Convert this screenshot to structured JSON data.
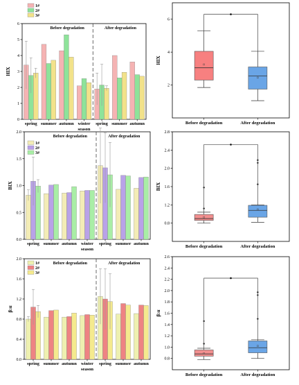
{
  "colors": {
    "s1_top": "#f5b3b3",
    "s2_top": "#8ee39a",
    "s3_top": "#f2e28a",
    "s1_mid": "#f3ecb6",
    "s2_mid": "#b9a2e8",
    "s3_mid": "#a9eea6",
    "s1_bot": "#eef0b0",
    "s2_bot": "#ee8383",
    "s3_bot": "#f5ea8e",
    "box_top_a": "#f78080",
    "box_top_b": "#6aa5e6",
    "box_mid_a": "#f28f8f",
    "box_mid_b": "#6aa5e6",
    "box_bot_a": "#f28f8f",
    "box_bot_b": "#6aa5e6"
  },
  "chart_data": [
    {
      "type": "bar",
      "ylabel": "HIX",
      "xlabel": "season",
      "ylim": [
        0,
        6
      ],
      "yticks": [
        0,
        1,
        2,
        3,
        4,
        5,
        6
      ],
      "categories": [
        "spring",
        "summer",
        "autumn",
        "winter",
        "spring",
        "summer",
        "autumn"
      ],
      "annotations": [
        "Before degradation",
        "After degradation"
      ],
      "series": [
        {
          "name": "1#",
          "values": [
            3.4,
            4.7,
            4.3,
            2.1,
            1.9,
            4.0,
            3.6
          ],
          "err": [
            1.5,
            0,
            0,
            0,
            1.0,
            0,
            0
          ]
        },
        {
          "name": "2#",
          "values": [
            2.75,
            3.5,
            5.3,
            2.55,
            2.15,
            2.6,
            2.8
          ],
          "err": [
            1.1,
            0,
            0,
            0,
            1.3,
            0,
            0
          ]
        },
        {
          "name": "3#",
          "values": [
            2.9,
            3.7,
            3.9,
            2.3,
            1.95,
            2.95,
            2.7
          ],
          "err": [
            0.3,
            0,
            0,
            0,
            0.15,
            0,
            0
          ]
        }
      ]
    },
    {
      "type": "box",
      "ylabel": "HIX",
      "ylim": [
        0,
        7
      ],
      "yticks": [
        2,
        4,
        6
      ],
      "categories": [
        "Before degradation",
        "After degradation"
      ],
      "boxes": [
        {
          "min": 1.85,
          "q1": 2.3,
          "median": 3.05,
          "mean": 3.25,
          "q3": 4.05,
          "max": 5.3,
          "outliers": []
        },
        {
          "min": 1.05,
          "q1": 1.75,
          "median": 2.55,
          "mean": 2.45,
          "q3": 3.1,
          "max": 4.05,
          "outliers": []
        }
      ],
      "bracket": 6.3
    },
    {
      "type": "bar",
      "ylabel": "BIX",
      "xlabel": "season",
      "ylim": [
        0,
        2.0
      ],
      "yticks": [
        0.0,
        0.5,
        1.0,
        1.5,
        2.0
      ],
      "categories": [
        "spring",
        "summer",
        "autumn",
        "winter",
        "spring",
        "summer",
        "autumn"
      ],
      "annotations": [
        "Before degradation",
        "After degradation"
      ],
      "series": [
        {
          "name": "1#",
          "values": [
            0.82,
            0.85,
            0.86,
            0.9,
            1.37,
            0.93,
            0.95
          ],
          "err": [
            0.1,
            0,
            0,
            0,
            0.7,
            0,
            0
          ]
        },
        {
          "name": "2#",
          "values": [
            1.08,
            1.01,
            0.87,
            0.91,
            1.33,
            1.19,
            1.15
          ],
          "err": [
            0.45,
            0,
            0,
            0,
            0.65,
            0,
            0
          ]
        },
        {
          "name": "3#",
          "values": [
            0.99,
            1.02,
            0.98,
            0.91,
            1.2,
            1.18,
            1.16
          ],
          "err": [
            0.12,
            0,
            0,
            0,
            0.6,
            0,
            0
          ]
        }
      ]
    },
    {
      "type": "box",
      "ylabel": "BIX",
      "ylim": [
        0.4,
        2.8
      ],
      "yticks": [
        0.8,
        1.2,
        1.6,
        2.0,
        2.4
      ],
      "ytick_top": 2.8,
      "categories": [
        "Before degradation",
        "After degradation"
      ],
      "boxes": [
        {
          "min": 0.8,
          "q1": 0.86,
          "median": 0.9,
          "mean": 0.93,
          "q3": 0.99,
          "max": 1.04,
          "outliers": [
            1.12,
            1.58
          ]
        },
        {
          "min": 0.82,
          "q1": 0.93,
          "median": 1.08,
          "mean": 1.1,
          "q3": 1.19,
          "max": 1.2,
          "outliers": [
            1.65,
            2.12,
            2.18
          ]
        }
      ],
      "bracket": 2.52
    },
    {
      "type": "bar",
      "ylabel": "β:α",
      "xlabel": "season",
      "ylim": [
        0,
        2.0
      ],
      "yticks": [
        0.0,
        0.4,
        0.8,
        1.2,
        1.6,
        2.0
      ],
      "categories": [
        "spring",
        "summer",
        "autumn",
        "winter",
        "spring",
        "summer",
        "autumn"
      ],
      "annotations": [
        "Before degradation",
        "After degradation"
      ],
      "series": [
        {
          "name": "1#",
          "values": [
            0.8,
            0.84,
            0.84,
            0.87,
            1.25,
            0.9,
            0.91
          ],
          "err": [
            0.05,
            0,
            0,
            0,
            0.55,
            0,
            0
          ]
        },
        {
          "name": "2#",
          "values": [
            1.04,
            0.97,
            0.85,
            0.89,
            1.2,
            1.11,
            1.08
          ],
          "err": [
            0.35,
            0,
            0,
            0,
            0.6,
            0,
            0
          ]
        },
        {
          "name": "3#",
          "values": [
            0.95,
            0.98,
            0.92,
            0.88,
            1.15,
            1.08,
            1.07
          ],
          "err": [
            0.12,
            0,
            0,
            0,
            0.55,
            0,
            0
          ]
        }
      ]
    },
    {
      "type": "box",
      "ylabel": "β:α",
      "ylim": [
        0.6,
        2.6
      ],
      "yticks": [
        0.8,
        1.0,
        1.2,
        1.4,
        1.6,
        1.8,
        2.0,
        2.2,
        2.4,
        2.6
      ],
      "categories": [
        "Before degradation",
        "After degradation"
      ],
      "boxes": [
        {
          "min": 0.78,
          "q1": 0.84,
          "median": 0.88,
          "mean": 0.89,
          "q3": 0.95,
          "max": 0.98,
          "outliers": [
            1.06,
            1.46
          ]
        },
        {
          "min": 0.8,
          "q1": 0.9,
          "median": 0.99,
          "mean": 1.02,
          "q3": 1.11,
          "max": 1.13,
          "outliers": [
            1.5,
            1.92,
            1.97
          ]
        }
      ],
      "bracket": 2.22
    }
  ]
}
